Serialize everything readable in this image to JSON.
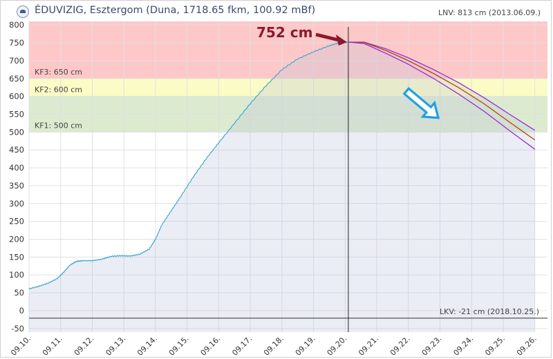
{
  "header": {
    "title": "ÉDUVIZIG, Esztergom (Duna, 1718.65 fkm, 100.92 mBf)",
    "lnv": "LNV: 813 cm (2013.06.09.)"
  },
  "chart_data": {
    "type": "line",
    "ylim": [
      -60,
      810
    ],
    "yticks": [
      -50,
      0,
      50,
      100,
      150,
      200,
      250,
      300,
      350,
      400,
      450,
      500,
      550,
      600,
      650,
      700,
      750,
      800
    ],
    "xlim": [
      0,
      16.4
    ],
    "xticks": [
      "09.10.",
      "09.11.",
      "09.12.",
      "09.13.",
      "09.14.",
      "09.15.",
      "09.16.",
      "09.17.",
      "09.18.",
      "09.19.",
      "09.20.",
      "09.21.",
      "09.22.",
      "09.23.",
      "09.24.",
      "09.25.",
      "09.26."
    ],
    "bands": [
      {
        "label": "KF3: 650 cm",
        "from": 650,
        "to": 810,
        "color": "#ffc8c8"
      },
      {
        "label": "KF2: 600 cm",
        "from": 600,
        "to": 650,
        "color": "#fbfbc6"
      },
      {
        "label": "KF1: 500 cm",
        "from": 500,
        "to": 600,
        "color": "#dcebcf"
      }
    ],
    "lkv_label": "LKV: -21 cm (2018.10.25.)",
    "lkv_value": -21,
    "peak_label": "752 cm",
    "peak_x": 10.1,
    "peak_value": 752,
    "measured": {
      "color": "#2fa4cc",
      "x": [
        0.0,
        0.3,
        0.6,
        0.9,
        1.1,
        1.3,
        1.5,
        1.7,
        2.0,
        2.3,
        2.6,
        2.9,
        3.2,
        3.5,
        3.8,
        4.0,
        4.2,
        4.5,
        4.8,
        5.2,
        5.6,
        6.0,
        6.5,
        7.0,
        7.5,
        8.0,
        8.5,
        9.0,
        9.5,
        9.8,
        10.1
      ],
      "y": [
        61,
        68,
        77,
        90,
        108,
        128,
        138,
        140,
        140,
        144,
        152,
        154,
        153,
        158,
        172,
        200,
        240,
        280,
        320,
        375,
        425,
        470,
        525,
        580,
        630,
        675,
        705,
        725,
        742,
        750,
        752
      ]
    },
    "forecasts": [
      {
        "color": "#9b28d4",
        "x": [
          10.1,
          10.6,
          11.3,
          12.0,
          12.8,
          13.6,
          14.4,
          15.2,
          16.0
        ],
        "y": [
          752,
          752,
          733,
          708,
          675,
          638,
          596,
          550,
          505
        ]
      },
      {
        "color": "#b84400",
        "x": [
          10.1,
          10.6,
          11.3,
          12.0,
          12.8,
          13.6,
          14.4,
          15.2,
          16.0
        ],
        "y": [
          752,
          751,
          728,
          700,
          664,
          624,
          579,
          528,
          478
        ]
      },
      {
        "color": "#9b28d4",
        "x": [
          10.1,
          10.6,
          11.3,
          12.0,
          12.8,
          13.6,
          14.4,
          15.2,
          16.0
        ],
        "y": [
          752,
          748,
          720,
          690,
          650,
          606,
          558,
          504,
          452
        ]
      }
    ],
    "current_x": 10.1
  }
}
